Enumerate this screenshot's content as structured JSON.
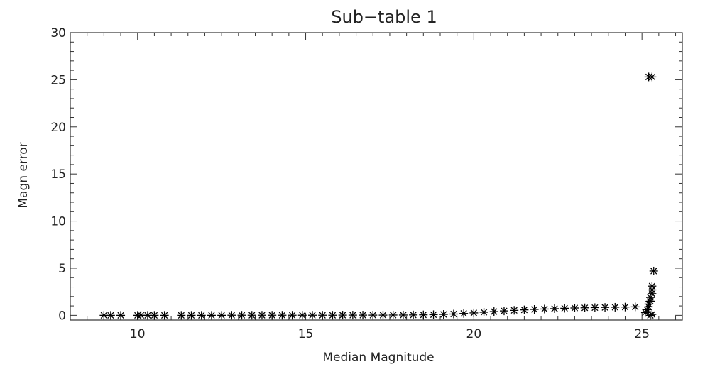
{
  "chart_data": {
    "type": "scatter",
    "title": "Sub−table 1",
    "xlabel": "Median Magnitude",
    "ylabel": "Magn error",
    "xlim": [
      8,
      26.2
    ],
    "ylim": [
      -0.5,
      30
    ],
    "xticks": [
      10,
      15,
      20,
      25
    ],
    "yticks": [
      0,
      5,
      10,
      15,
      20,
      25,
      30
    ],
    "marker": "asterisk",
    "grid": false,
    "points": [
      [
        9.0,
        0.0
      ],
      [
        9.2,
        0.0
      ],
      [
        9.5,
        0.0
      ],
      [
        10.0,
        0.0
      ],
      [
        10.1,
        0.0
      ],
      [
        10.3,
        0.0
      ],
      [
        10.5,
        0.0
      ],
      [
        10.8,
        0.0
      ],
      [
        11.3,
        0.0
      ],
      [
        11.6,
        0.0
      ],
      [
        11.9,
        0.0
      ],
      [
        12.2,
        0.0
      ],
      [
        12.5,
        0.0
      ],
      [
        12.8,
        0.01
      ],
      [
        13.1,
        0.01
      ],
      [
        13.4,
        0.01
      ],
      [
        13.7,
        0.01
      ],
      [
        14.0,
        0.01
      ],
      [
        14.3,
        0.01
      ],
      [
        14.6,
        0.01
      ],
      [
        14.9,
        0.01
      ],
      [
        15.2,
        0.01
      ],
      [
        15.5,
        0.01
      ],
      [
        15.8,
        0.01
      ],
      [
        16.1,
        0.02
      ],
      [
        16.4,
        0.02
      ],
      [
        16.7,
        0.02
      ],
      [
        17.0,
        0.02
      ],
      [
        17.3,
        0.02
      ],
      [
        17.6,
        0.03
      ],
      [
        17.9,
        0.03
      ],
      [
        18.2,
        0.04
      ],
      [
        18.5,
        0.05
      ],
      [
        18.8,
        0.07
      ],
      [
        19.1,
        0.1
      ],
      [
        19.4,
        0.14
      ],
      [
        19.7,
        0.2
      ],
      [
        20.0,
        0.26
      ],
      [
        20.3,
        0.33
      ],
      [
        20.6,
        0.4
      ],
      [
        20.9,
        0.47
      ],
      [
        21.2,
        0.53
      ],
      [
        21.5,
        0.58
      ],
      [
        21.8,
        0.63
      ],
      [
        22.1,
        0.67
      ],
      [
        22.4,
        0.71
      ],
      [
        22.7,
        0.75
      ],
      [
        23.0,
        0.78
      ],
      [
        23.3,
        0.8
      ],
      [
        23.6,
        0.82
      ],
      [
        23.9,
        0.84
      ],
      [
        24.2,
        0.86
      ],
      [
        24.5,
        0.88
      ],
      [
        24.8,
        0.9
      ],
      [
        25.1,
        0.3
      ],
      [
        25.15,
        0.6
      ],
      [
        25.2,
        0.9
      ],
      [
        25.2,
        1.2
      ],
      [
        25.25,
        1.5
      ],
      [
        25.25,
        1.9
      ],
      [
        25.3,
        2.3
      ],
      [
        25.3,
        2.7
      ],
      [
        25.3,
        3.1
      ],
      [
        25.35,
        4.7
      ],
      [
        25.3,
        0.1
      ],
      [
        25.25,
        0.0
      ],
      [
        25.2,
        25.3
      ],
      [
        25.3,
        25.3
      ]
    ]
  }
}
